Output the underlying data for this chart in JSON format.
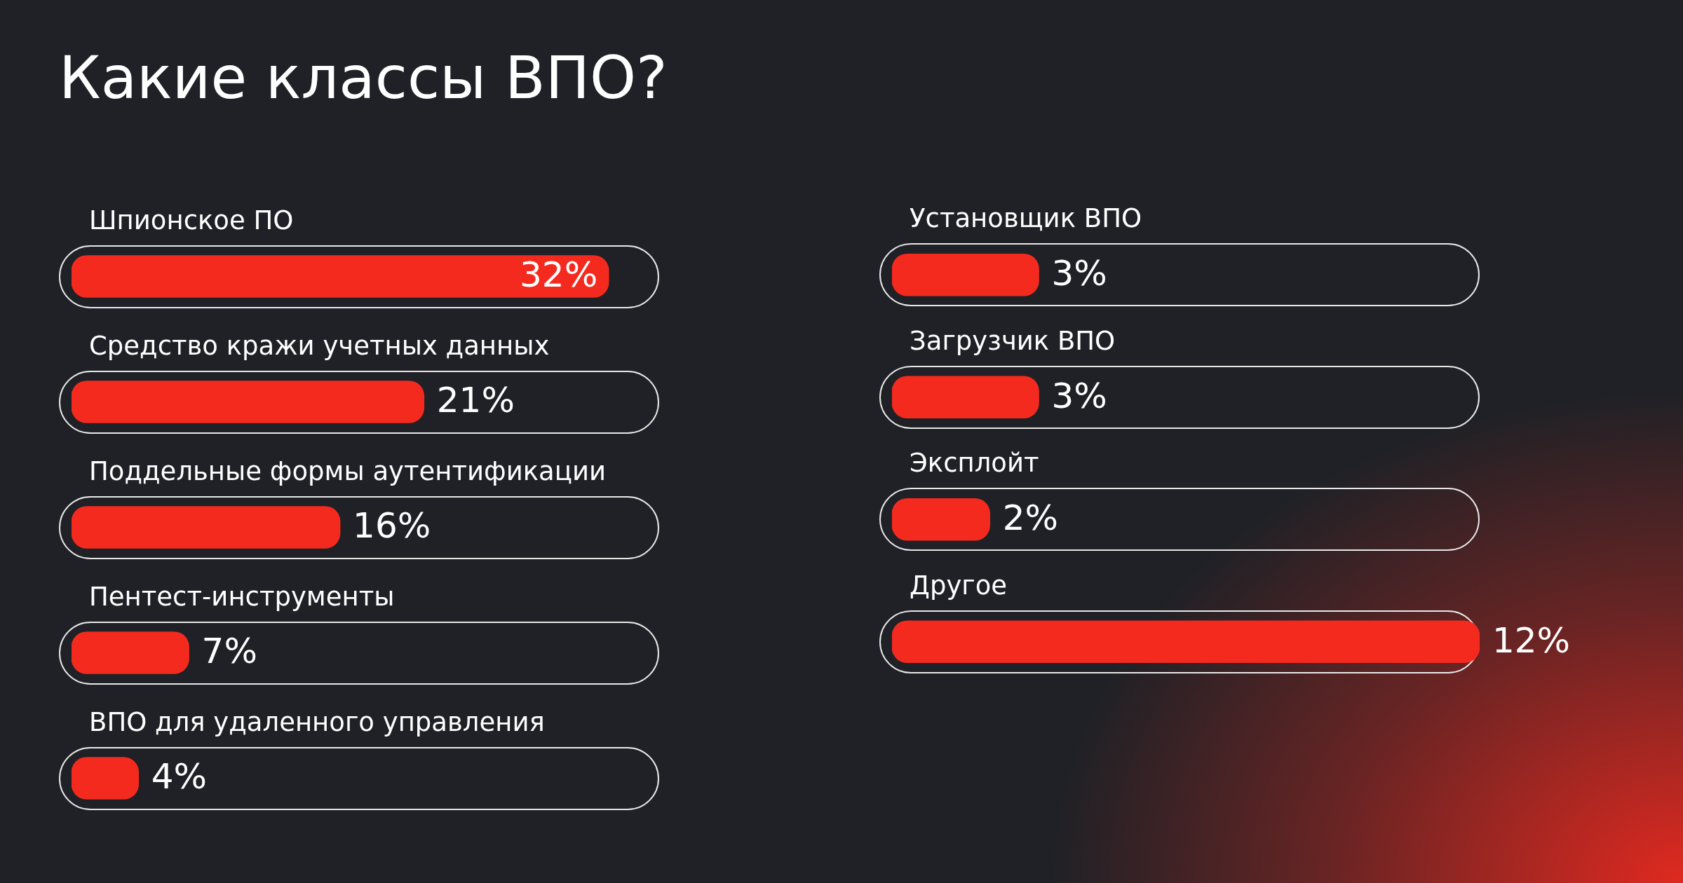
{
  "chart_data": [
    {
      "type": "bar",
      "orientation": "horizontal",
      "title": "Какие классы ВПО?",
      "categories": [
        "Шпионское ПО",
        "Средство кражи учетных данных",
        "Поддельные формы аутентификации",
        "Пентест-инструменты",
        "ВПО для удаленного управления"
      ],
      "values": [
        32,
        21,
        16,
        7,
        4
      ],
      "value_labels": [
        "32%",
        "21%",
        "16%",
        "7%",
        "4%"
      ],
      "color": "#f52a1f",
      "tick_labels": false
    },
    {
      "type": "bar",
      "orientation": "horizontal",
      "categories": [
        "Установщик ВПО",
        "Загрузчик ВПО",
        "Эксплойт",
        "Другое"
      ],
      "values": [
        3,
        3,
        2,
        12
      ],
      "value_labels": [
        "3%",
        "3%",
        "2%",
        "12%"
      ],
      "color": "#f52a1f",
      "tick_labels": false
    }
  ]
}
